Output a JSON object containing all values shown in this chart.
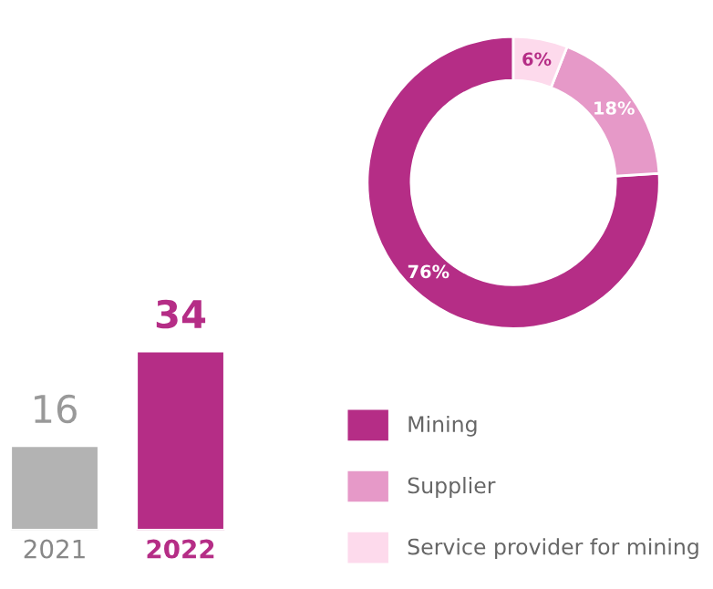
{
  "chart_data": [
    {
      "type": "bar",
      "categories": [
        "2021",
        "2022"
      ],
      "values": [
        16,
        34
      ],
      "colors": [
        "#b3b3b3",
        "#b52d86"
      ],
      "data_labels": true
    },
    {
      "type": "donut",
      "categories": [
        "Mining",
        "Supplier",
        "Service provider for mining"
      ],
      "values": [
        76,
        18,
        6
      ],
      "colors": [
        "#b52d86",
        "#e699c8",
        "#fddaec"
      ],
      "value_labels": [
        "76%",
        "18%",
        "6%"
      ],
      "legend": "bottom"
    }
  ]
}
